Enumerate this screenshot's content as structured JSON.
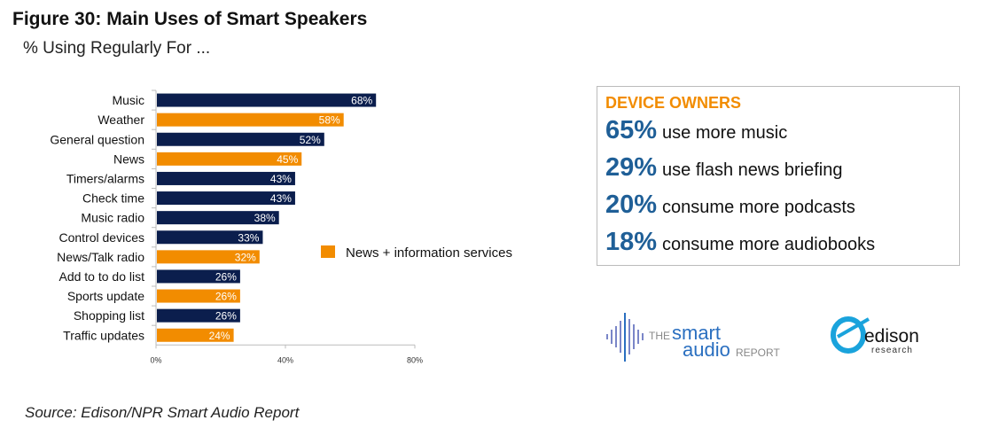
{
  "title": "Figure 30: Main Uses of Smart Speakers",
  "subtitle": "% Using Regularly For ...",
  "source": "Source: Edison/NPR Smart Audio Report",
  "colors": {
    "default": "#0b1e4d",
    "news": "#f28c00",
    "stat": "#1f5f97"
  },
  "chart_data": {
    "type": "bar",
    "orientation": "horizontal",
    "categories": [
      "Music",
      "Weather",
      "General question",
      "News",
      "Timers/alarms",
      "Check time",
      "Music radio",
      "Control devices",
      "News/Talk radio",
      "Add to to do list",
      "Sports update",
      "Shopping list",
      "Traffic updates"
    ],
    "values": [
      68,
      58,
      52,
      45,
      43,
      43,
      38,
      33,
      32,
      26,
      26,
      26,
      24
    ],
    "highlight": [
      false,
      true,
      false,
      true,
      false,
      false,
      false,
      false,
      true,
      false,
      true,
      false,
      true
    ],
    "data_labels": [
      "68%",
      "58%",
      "52%",
      "45%",
      "43%",
      "43%",
      "38%",
      "33%",
      "32%",
      "26%",
      "26%",
      "26%",
      "24%"
    ],
    "xlim": [
      0,
      80
    ],
    "x_ticks": [
      "0%",
      "40%",
      "80%"
    ],
    "x_tick_values": [
      0,
      40,
      80
    ],
    "legend": {
      "label": "News + information services",
      "color": "#f28c00",
      "placement": "right"
    },
    "grid": false
  },
  "callout": {
    "heading": "DEVICE OWNERS",
    "stats": [
      {
        "pct": "65%",
        "text": "use more music"
      },
      {
        "pct": "29%",
        "text": "use flash news briefing"
      },
      {
        "pct": "20%",
        "text": "consume more podcasts"
      },
      {
        "pct": "18%",
        "text": "consume more audiobooks"
      }
    ]
  },
  "logos": {
    "smart_audio": "THE smart audio REPORT",
    "edison": "edison research"
  }
}
